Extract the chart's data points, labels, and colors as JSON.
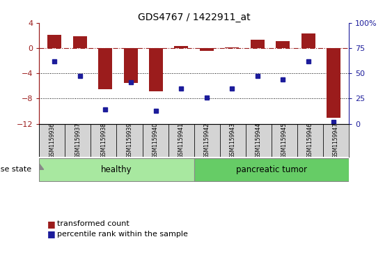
{
  "title": "GDS4767 / 1422911_at",
  "samples": [
    "GSM1159936",
    "GSM1159937",
    "GSM1159938",
    "GSM1159939",
    "GSM1159940",
    "GSM1159941",
    "GSM1159942",
    "GSM1159943",
    "GSM1159944",
    "GSM1159945",
    "GSM1159946",
    "GSM1159947"
  ],
  "transformed_count": [
    2.1,
    1.9,
    -6.5,
    -5.5,
    -6.8,
    0.3,
    -0.5,
    0.1,
    1.3,
    1.1,
    2.3,
    -11.0
  ],
  "percentile_rank": [
    62,
    47,
    14,
    41,
    13,
    35,
    26,
    35,
    47,
    44,
    62,
    2
  ],
  "left_ylim": [
    -12,
    4
  ],
  "right_ylim": [
    0,
    100
  ],
  "left_yticks": [
    -12,
    -8,
    -4,
    0,
    4
  ],
  "right_yticks": [
    0,
    25,
    50,
    75,
    100
  ],
  "bar_color": "#9B1C1C",
  "dot_color": "#1C1C9B",
  "dotted_hlines": [
    -4,
    -8
  ],
  "healthy_count": 6,
  "tumor_count": 6,
  "group_labels": [
    "healthy",
    "pancreatic tumor"
  ],
  "healthy_color": "#A8E8A0",
  "tumor_color": "#66CC66",
  "disease_label": "disease state",
  "legend_items": [
    "transformed count",
    "percentile rank within the sample"
  ],
  "bg_color": "#FFFFFF",
  "sample_cell_color": "#D4D4D4",
  "bar_width": 0.55
}
